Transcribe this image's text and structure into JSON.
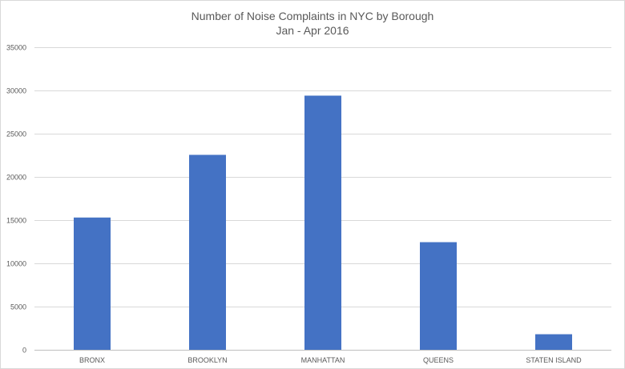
{
  "chart_data": {
    "type": "bar",
    "title": "Number of Noise Complaints in NYC by Borough",
    "subtitle": "Jan - Apr 2016",
    "xlabel": "",
    "ylabel": "",
    "categories": [
      "BRONX",
      "BROOKLYN",
      "MANHATTAN",
      "QUEENS",
      "STATEN ISLAND"
    ],
    "values": [
      15300,
      22550,
      29400,
      12450,
      1800
    ],
    "ylim": [
      0,
      35000
    ],
    "yticks": [
      0,
      5000,
      10000,
      15000,
      20000,
      25000,
      30000,
      35000
    ],
    "grid": true,
    "legend": "none",
    "bar_color": "#4472c4"
  }
}
